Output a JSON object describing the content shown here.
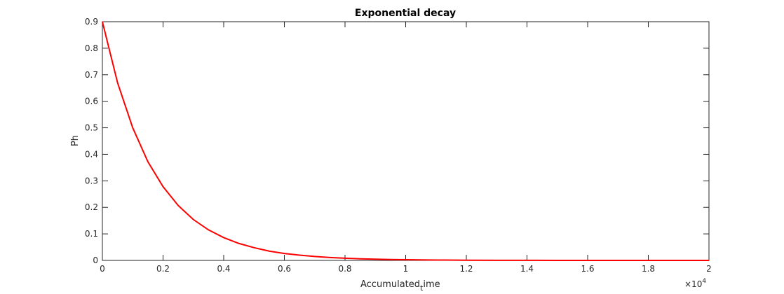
{
  "chart_data": {
    "type": "line",
    "title": "Exponential decay",
    "xlabel_main": "Accumulated",
    "xlabel_sub": "t",
    "xlabel_tail": "ime",
    "ylabel": "Ph",
    "x_exponent_base": "×10",
    "x_exponent_power": "4",
    "xlim": [
      0,
      2
    ],
    "ylim": [
      0,
      0.9
    ],
    "x_ticks": [
      0,
      0.2,
      0.4,
      0.6,
      0.8,
      1,
      1.2,
      1.4,
      1.6,
      1.8,
      2
    ],
    "x_tick_labels": [
      "0",
      "0.2",
      "0.4",
      "0.6",
      "0.8",
      "1",
      "1.2",
      "1.4",
      "1.6",
      "1.8",
      "2"
    ],
    "y_ticks": [
      0,
      0.1,
      0.2,
      0.3,
      0.4,
      0.5,
      0.6,
      0.7,
      0.8,
      0.9
    ],
    "y_tick_labels": [
      "0",
      "0.1",
      "0.2",
      "0.3",
      "0.4",
      "0.5",
      "0.6",
      "0.7",
      "0.8",
      "0.9"
    ],
    "grid": false,
    "series": [
      {
        "color": "#ff0000",
        "x": [
          0,
          0.05,
          0.1,
          0.15,
          0.2,
          0.25,
          0.3,
          0.35,
          0.4,
          0.45,
          0.5,
          0.55,
          0.6,
          0.65,
          0.7,
          0.75,
          0.8,
          0.85,
          0.9,
          0.95,
          1.0,
          1.1,
          1.2,
          1.3,
          1.4,
          1.5,
          1.6,
          1.7,
          1.8,
          1.9,
          2.0
        ],
        "y": [
          0.9,
          0.67,
          0.5,
          0.372,
          0.278,
          0.207,
          0.154,
          0.115,
          0.086,
          0.064,
          0.048,
          0.035,
          0.026,
          0.0197,
          0.0147,
          0.011,
          0.0082,
          0.0061,
          0.0045,
          0.0034,
          0.0025,
          0.0014,
          0.0008,
          0.0004,
          0.0002,
          0.0001,
          0.0001,
          0.0,
          0.0,
          0.0,
          0.0
        ]
      }
    ]
  }
}
